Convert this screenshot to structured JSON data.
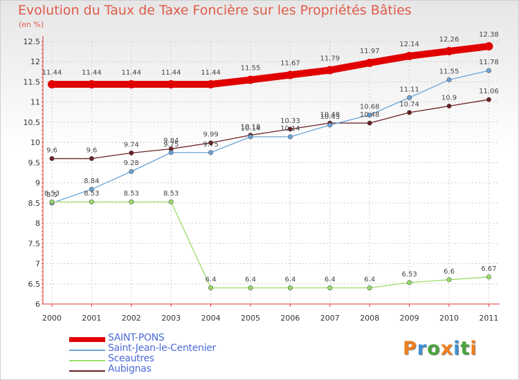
{
  "chart_data": {
    "type": "line",
    "title": "Evolution du Taux de Taxe Foncière sur les Propriétés Bâties",
    "subtitle": "(en %)",
    "x": [
      "2000",
      "2001",
      "2002",
      "2003",
      "2004",
      "2005",
      "2006",
      "2007",
      "2008",
      "2009",
      "2010",
      "2011"
    ],
    "ylim": [
      6,
      12.5
    ],
    "yticks": [
      "6",
      "6.5",
      "7",
      "7.5",
      "8",
      "8.5",
      "9",
      "9.5",
      "10",
      "10.5",
      "11",
      "11.5",
      "12",
      "12.5"
    ],
    "series": [
      {
        "name": "SAINT-PONS",
        "color": "#e00000",
        "values": [
          11.44,
          11.44,
          11.44,
          11.44,
          11.44,
          11.55,
          11.67,
          11.79,
          11.97,
          12.14,
          12.26,
          12.38
        ],
        "labels": [
          "11.44",
          "11.44",
          "11.44",
          "11.44",
          "11.44",
          "11.55",
          "11.67",
          "11.79",
          "11.97",
          "12.14",
          "12.26",
          "12.38"
        ]
      },
      {
        "name": "Saint-Jean-le-Centenier",
        "color": "#6aa3d8",
        "values": [
          8.5,
          8.84,
          9.28,
          9.75,
          9.75,
          10.14,
          10.14,
          10.43,
          10.68,
          11.11,
          11.55,
          11.78
        ],
        "labels": [
          "8.5",
          "8.84",
          "9.28",
          "9.75",
          "9.75",
          "10.14",
          "10.14",
          "10.43",
          "10.68",
          "11.11",
          "11.55",
          "11.78"
        ]
      },
      {
        "name": "Sceautres",
        "color": "#99dd66",
        "values": [
          8.53,
          8.53,
          8.53,
          8.53,
          6.4,
          6.4,
          6.4,
          6.4,
          6.4,
          6.53,
          6.6,
          6.67
        ],
        "labels": [
          "8.53",
          "8.53",
          "8.53",
          "8.53",
          "6.4",
          "6.4",
          "6.4",
          "6.4",
          "6.4",
          "6.53",
          "6.6",
          "6.67"
        ]
      },
      {
        "name": "Aubignas",
        "color": "#6b1f24",
        "values": [
          9.6,
          9.6,
          9.74,
          9.84,
          9.99,
          10.18,
          10.33,
          10.48,
          10.48,
          10.74,
          10.9,
          11.06
        ],
        "labels": [
          "9.6",
          "9.6",
          "9.74",
          "9.84",
          "9.99",
          "10.18",
          "10.33",
          "10.48",
          "10.48",
          "10.74",
          "10.9",
          "11.06"
        ]
      }
    ]
  },
  "logo": {
    "text": [
      "P",
      "r",
      "o",
      "x",
      "i",
      "t",
      "i"
    ],
    "colors": [
      "#f07f1e",
      "#3e8fd6",
      "#4aa33e",
      "#f07f1e",
      "#3e8fd6",
      "#4aa33e",
      "#f07f1e"
    ]
  }
}
